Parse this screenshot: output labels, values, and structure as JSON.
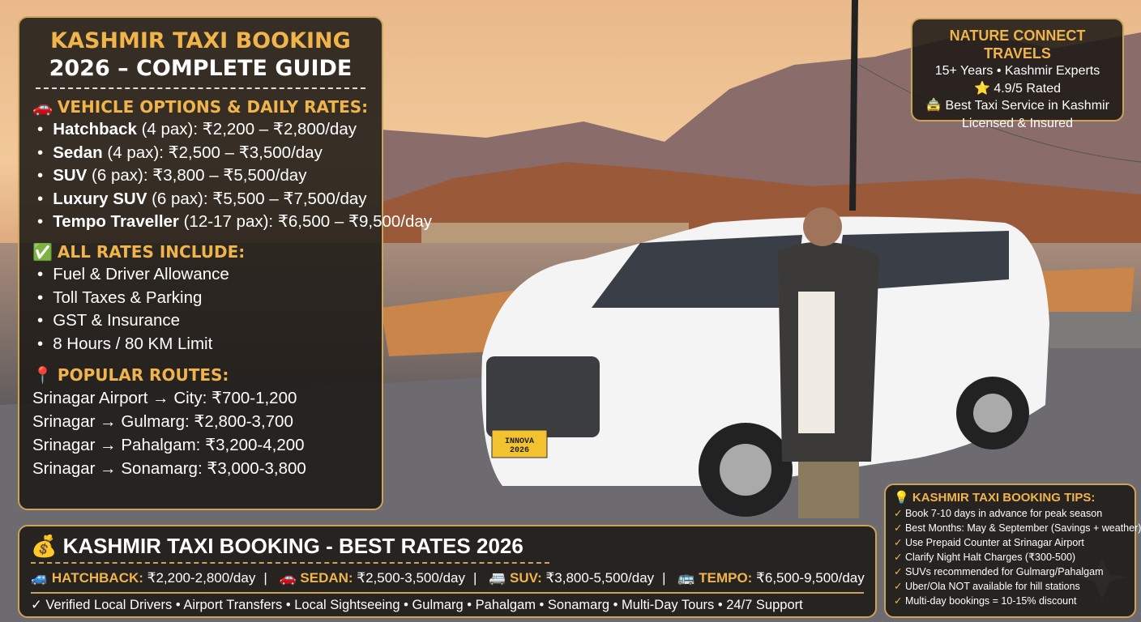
{
  "colors": {
    "accent": "#f0b44a",
    "panel": "#1c1916",
    "border": "#c9a45a"
  },
  "main_panel": {
    "title_line1": "KASHMIR TAXI BOOKING",
    "title_line2": "2026 – COMPLETE GUIDE",
    "vehicles_heading": "VEHICLE OPTIONS & DAILY RATES:",
    "vehicles": [
      {
        "name": "Hatchback",
        "detail": " (4 pax): ₹2,200 – ₹2,800/day"
      },
      {
        "name": "Sedan",
        "detail": " (4 pax): ₹2,500 – ₹3,500/day"
      },
      {
        "name": "SUV",
        "detail": " (6 pax): ₹3,800 – ₹5,500/day"
      },
      {
        "name": "Luxury SUV",
        "detail": " (6 pax): ₹5,500 – ₹7,500/day"
      },
      {
        "name": "Tempo Traveller",
        "detail": " (12-17 pax): ₹6,500 – ₹9,500/day"
      }
    ],
    "includes_heading": "ALL RATES INCLUDE:",
    "includes": [
      "Fuel & Driver Allowance",
      "Toll Taxes & Parking",
      "GST & Insurance",
      "8 Hours / 80 KM Limit"
    ],
    "routes_heading": "POPULAR ROUTES:",
    "routes": [
      "Srinagar Airport → City: ₹700-1,200",
      "Srinagar → Gulmarg: ₹2,800-3,700",
      "Srinagar → Pahalgam: ₹3,200-4,200",
      "Srinagar → Sonamarg: ₹3,000-3,800"
    ]
  },
  "brand_panel": {
    "name": "NATURE CONNECT TRAVELS",
    "line1": "15+ Years • Kashmir Experts",
    "line2": "⭐ 4.9/5 Rated",
    "line3": "🚖 Best Taxi Service in Kashmir",
    "line4": "Licensed & Insured"
  },
  "bottom_panel": {
    "title": "KASHMIR TAXI BOOKING - BEST RATES 2026",
    "rates": [
      {
        "icon": "🚙",
        "label": "HATCHBACK:",
        "value": " ₹2,200-2,800/day"
      },
      {
        "icon": "🚗",
        "label": "SEDAN:",
        "value": " ₹2,500-3,500/day"
      },
      {
        "icon": "🚐",
        "label": "SUV:",
        "value": " ₹3,800-5,500/day"
      },
      {
        "icon": "🚌",
        "label": "TEMPO:",
        "value": " ₹6,500-9,500/day"
      }
    ],
    "features": "✓ Verified Local Drivers • Airport Transfers • Local Sightseeing • Gulmarg • Pahalgam • Sonamarg • Multi-Day Tours • 24/7 Support"
  },
  "tips_panel": {
    "title": "KASHMIR TAXI BOOKING TIPS:",
    "tips": [
      "Book 7-10 days in advance for peak season",
      "Best Months: May & September (Savings + weather)",
      "Use Prepaid Counter at Srinagar Airport",
      "Clarify Night Halt Charges (₹300-500)",
      "SUVs recommended for Gulmarg/Pahalgam",
      "Uber/Ola NOT available for hill stations",
      "Multi-day bookings = 10-15% discount"
    ]
  },
  "photo": {
    "number_plate": "INNOVA 2026"
  }
}
